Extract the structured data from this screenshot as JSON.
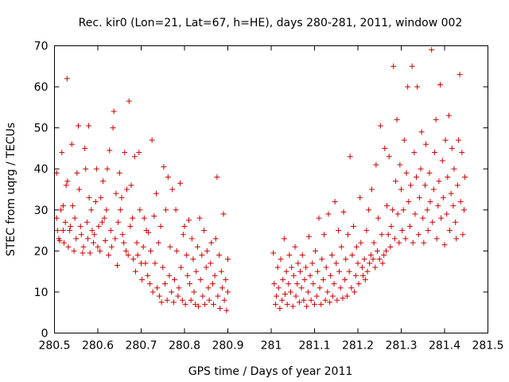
{
  "chart_data": {
    "type": "scatter",
    "title": "Rec. kir0 (Lon=21, Lat=67, h=HE), days 280-281, 2011, window 002",
    "xlabel": "GPS time / Days of year 2011",
    "ylabel": "STEC from uqrg / TECUs",
    "xlim": [
      280.5,
      281.5
    ],
    "ylim": [
      0,
      70
    ],
    "xticks": [
      "280.5",
      "280.6",
      "280.7",
      "280.8",
      "280.9",
      "281",
      "281.1",
      "281.2",
      "281.3",
      "281.4",
      "281.5"
    ],
    "yticks": [
      "0",
      "10",
      "20",
      "30",
      "40",
      "50",
      "60",
      "70"
    ],
    "grid": false,
    "marker": "+",
    "color": "#cc0000",
    "points": [
      [
        280.505,
        39
      ],
      [
        280.505,
        28
      ],
      [
        280.507,
        25
      ],
      [
        280.51,
        23
      ],
      [
        280.512,
        22.5
      ],
      [
        280.515,
        30
      ],
      [
        280.517,
        44
      ],
      [
        280.52,
        31
      ],
      [
        280.52,
        25
      ],
      [
        280.522,
        22
      ],
      [
        280.525,
        27
      ],
      [
        280.527,
        36
      ],
      [
        280.529,
        62
      ],
      [
        280.53,
        37
      ],
      [
        280.532,
        21
      ],
      [
        280.535,
        25
      ],
      [
        280.537,
        26
      ],
      [
        280.54,
        46
      ],
      [
        280.542,
        31
      ],
      [
        280.545,
        20
      ],
      [
        280.547,
        28
      ],
      [
        280.55,
        23
      ],
      [
        280.552,
        39
      ],
      [
        280.555,
        50.5
      ],
      [
        280.557,
        35
      ],
      [
        280.56,
        26
      ],
      [
        280.562,
        24
      ],
      [
        280.565,
        19.5
      ],
      [
        280.567,
        21
      ],
      [
        280.57,
        45
      ],
      [
        280.572,
        40
      ],
      [
        280.575,
        27
      ],
      [
        280.577,
        23
      ],
      [
        280.579,
        50.5
      ],
      [
        280.58,
        33
      ],
      [
        280.582,
        19.5
      ],
      [
        280.585,
        30
      ],
      [
        280.587,
        25
      ],
      [
        280.59,
        22
      ],
      [
        280.592,
        24
      ],
      [
        280.595,
        32
      ],
      [
        280.597,
        40
      ],
      [
        280.6,
        21
      ],
      [
        280.602,
        26
      ],
      [
        280.605,
        20
      ],
      [
        280.607,
        33
      ],
      [
        280.61,
        27
      ],
      [
        280.612,
        37
      ],
      [
        280.615,
        28
      ],
      [
        280.617,
        22.5
      ],
      [
        280.62,
        30
      ],
      [
        280.622,
        40
      ],
      [
        280.625,
        19
      ],
      [
        280.627,
        44.5
      ],
      [
        280.63,
        25
      ],
      [
        280.632,
        21
      ],
      [
        280.635,
        50
      ],
      [
        280.637,
        54
      ],
      [
        280.64,
        23
      ],
      [
        280.642,
        34
      ],
      [
        280.645,
        16.5
      ],
      [
        280.647,
        27
      ],
      [
        280.65,
        39
      ],
      [
        280.652,
        30
      ],
      [
        280.655,
        33
      ],
      [
        280.657,
        24
      ],
      [
        280.66,
        22
      ],
      [
        280.662,
        44
      ],
      [
        280.665,
        20
      ],
      [
        280.667,
        35
      ],
      [
        280.67,
        19
      ],
      [
        280.672,
        56.5
      ],
      [
        280.675,
        26
      ],
      [
        280.677,
        36
      ],
      [
        280.68,
        28
      ],
      [
        280.682,
        18
      ],
      [
        280.685,
        43
      ],
      [
        280.687,
        15
      ],
      [
        280.69,
        22
      ],
      [
        280.692,
        19
      ],
      [
        280.695,
        44
      ],
      [
        280.697,
        30
      ],
      [
        280.7,
        17
      ],
      [
        280.702,
        13
      ],
      [
        280.705,
        21
      ],
      [
        280.707,
        28
      ],
      [
        280.71,
        17
      ],
      [
        280.712,
        25
      ],
      [
        280.715,
        14
      ],
      [
        280.717,
        24.5
      ],
      [
        280.72,
        12
      ],
      [
        280.722,
        20
      ],
      [
        280.725,
        47
      ],
      [
        280.727,
        10
      ],
      [
        280.73,
        28.5
      ],
      [
        280.732,
        17
      ],
      [
        280.735,
        34
      ],
      [
        280.737,
        11
      ],
      [
        280.74,
        22
      ],
      [
        280.742,
        9
      ],
      [
        280.745,
        26
      ],
      [
        280.747,
        7.5
      ],
      [
        280.75,
        16
      ],
      [
        280.752,
        40.5
      ],
      [
        280.755,
        12
      ],
      [
        280.757,
        30
      ],
      [
        280.76,
        8
      ],
      [
        280.762,
        38
      ],
      [
        280.765,
        14
      ],
      [
        280.767,
        21
      ],
      [
        280.77,
        10
      ],
      [
        280.772,
        35
      ],
      [
        280.775,
        7.5
      ],
      [
        280.777,
        13
      ],
      [
        280.78,
        30
      ],
      [
        280.782,
        20
      ],
      [
        280.785,
        9
      ],
      [
        280.787,
        11
      ],
      [
        280.79,
        36.5
      ],
      [
        280.792,
        16
      ],
      [
        280.795,
        8
      ],
      [
        280.797,
        24
      ],
      [
        280.8,
        26
      ],
      [
        280.802,
        7
      ],
      [
        280.805,
        19
      ],
      [
        280.807,
        14
      ],
      [
        280.81,
        27.5
      ],
      [
        280.812,
        12
      ],
      [
        280.815,
        8
      ],
      [
        280.817,
        23
      ],
      [
        280.82,
        18
      ],
      [
        280.822,
        10
      ],
      [
        280.825,
        7
      ],
      [
        280.827,
        15
      ],
      [
        280.83,
        21
      ],
      [
        280.832,
        6.5
      ],
      [
        280.835,
        28
      ],
      [
        280.837,
        13
      ],
      [
        280.84,
        19
      ],
      [
        280.842,
        9
      ],
      [
        280.845,
        25
      ],
      [
        280.847,
        7
      ],
      [
        280.85,
        16
      ],
      [
        280.852,
        20
      ],
      [
        280.855,
        11
      ],
      [
        280.857,
        8
      ],
      [
        280.86,
        17
      ],
      [
        280.862,
        22
      ],
      [
        280.865,
        12
      ],
      [
        280.867,
        7
      ],
      [
        280.87,
        14
      ],
      [
        280.872,
        23
      ],
      [
        280.875,
        38
      ],
      [
        280.877,
        9
      ],
      [
        280.88,
        19
      ],
      [
        280.882,
        6
      ],
      [
        280.885,
        15
      ],
      [
        280.887,
        11
      ],
      [
        280.89,
        29
      ],
      [
        280.892,
        8
      ],
      [
        280.895,
        13
      ],
      [
        280.897,
        5.5
      ],
      [
        280.9,
        18
      ],
      [
        280.9,
        10
      ],
      [
        281.005,
        19.5
      ],
      [
        281.007,
        12
      ],
      [
        281.01,
        7
      ],
      [
        281.012,
        9
      ],
      [
        281.015,
        16
      ],
      [
        281.017,
        11
      ],
      [
        281.02,
        6
      ],
      [
        281.022,
        18
      ],
      [
        281.025,
        8
      ],
      [
        281.027,
        13
      ],
      [
        281.03,
        23
      ],
      [
        281.032,
        9.5
      ],
      [
        281.035,
        15
      ],
      [
        281.037,
        7
      ],
      [
        281.04,
        12
      ],
      [
        281.042,
        19
      ],
      [
        281.045,
        10
      ],
      [
        281.047,
        16
      ],
      [
        281.05,
        6.5
      ],
      [
        281.052,
        14
      ],
      [
        281.055,
        21
      ],
      [
        281.057,
        9
      ],
      [
        281.06,
        12
      ],
      [
        281.062,
        17
      ],
      [
        281.065,
        7.5
      ],
      [
        281.067,
        15
      ],
      [
        281.07,
        11
      ],
      [
        281.072,
        19
      ],
      [
        281.075,
        8
      ],
      [
        281.077,
        13
      ],
      [
        281.08,
        16
      ],
      [
        281.082,
        6.5
      ],
      [
        281.085,
        10
      ],
      [
        281.087,
        23.5
      ],
      [
        281.09,
        14
      ],
      [
        281.092,
        8
      ],
      [
        281.095,
        17
      ],
      [
        281.097,
        12
      ],
      [
        281.1,
        7
      ],
      [
        281.102,
        20
      ],
      [
        281.105,
        9
      ],
      [
        281.107,
        15
      ],
      [
        281.11,
        28
      ],
      [
        281.112,
        11
      ],
      [
        281.115,
        7
      ],
      [
        281.117,
        18
      ],
      [
        281.12,
        13
      ],
      [
        281.122,
        24
      ],
      [
        281.125,
        8
      ],
      [
        281.127,
        16
      ],
      [
        281.13,
        10
      ],
      [
        281.132,
        29
      ],
      [
        281.135,
        7.5
      ],
      [
        281.137,
        14
      ],
      [
        281.14,
        19
      ],
      [
        281.142,
        9
      ],
      [
        281.145,
        12
      ],
      [
        281.147,
        32
      ],
      [
        281.15,
        17
      ],
      [
        281.152,
        8
      ],
      [
        281.155,
        25
      ],
      [
        281.157,
        15
      ],
      [
        281.16,
        11
      ],
      [
        281.162,
        21
      ],
      [
        281.165,
        8.5
      ],
      [
        281.167,
        29.5
      ],
      [
        281.17,
        13
      ],
      [
        281.172,
        18
      ],
      [
        281.175,
        9
      ],
      [
        281.177,
        24
      ],
      [
        281.18,
        15
      ],
      [
        281.182,
        43
      ],
      [
        281.185,
        11
      ],
      [
        281.187,
        19
      ],
      [
        281.19,
        26
      ],
      [
        281.192,
        10
      ],
      [
        281.195,
        14
      ],
      [
        281.197,
        21
      ],
      [
        281.2,
        17
      ],
      [
        281.202,
        12
      ],
      [
        281.205,
        33
      ],
      [
        281.207,
        22
      ],
      [
        281.21,
        16
      ],
      [
        281.212,
        14
      ],
      [
        281.215,
        18
      ],
      [
        281.217,
        13
      ],
      [
        281.22,
        25
      ],
      [
        281.222,
        15
      ],
      [
        281.225,
        30
      ],
      [
        281.227,
        17
      ],
      [
        281.23,
        19
      ],
      [
        281.232,
        35
      ],
      [
        281.235,
        18
      ],
      [
        281.237,
        22
      ],
      [
        281.24,
        16
      ],
      [
        281.242,
        41
      ],
      [
        281.245,
        20
      ],
      [
        281.247,
        28
      ],
      [
        281.25,
        18
      ],
      [
        281.252,
        50.5
      ],
      [
        281.255,
        24
      ],
      [
        281.257,
        17
      ],
      [
        281.26,
        19
      ],
      [
        281.262,
        45
      ],
      [
        281.265,
        20
      ],
      [
        281.267,
        31
      ],
      [
        281.27,
        24
      ],
      [
        281.272,
        43
      ],
      [
        281.275,
        21
      ],
      [
        281.277,
        26
      ],
      [
        281.28,
        30
      ],
      [
        281.282,
        65
      ],
      [
        281.285,
        23
      ],
      [
        281.287,
        37
      ],
      [
        281.29,
        52
      ],
      [
        281.292,
        29
      ],
      [
        281.295,
        22
      ],
      [
        281.297,
        41
      ],
      [
        281.3,
        35
      ],
      [
        281.302,
        25
      ],
      [
        281.305,
        30
      ],
      [
        281.307,
        47
      ],
      [
        281.31,
        23
      ],
      [
        281.312,
        39
      ],
      [
        281.315,
        60
      ],
      [
        281.317,
        32
      ],
      [
        281.32,
        26
      ],
      [
        281.322,
        36
      ],
      [
        281.325,
        65
      ],
      [
        281.327,
        22
      ],
      [
        281.33,
        44
      ],
      [
        281.332,
        29
      ],
      [
        281.335,
        38
      ],
      [
        281.337,
        60
      ],
      [
        281.34,
        24
      ],
      [
        281.342,
        33
      ],
      [
        281.345,
        40
      ],
      [
        281.347,
        49
      ],
      [
        281.35,
        28
      ],
      [
        281.352,
        22
      ],
      [
        281.355,
        36
      ],
      [
        281.357,
        46
      ],
      [
        281.36,
        30
      ],
      [
        281.362,
        25
      ],
      [
        281.365,
        39
      ],
      [
        281.367,
        32
      ],
      [
        281.37,
        69
      ],
      [
        281.372,
        27
      ],
      [
        281.375,
        35
      ],
      [
        281.377,
        44
      ],
      [
        281.38,
        52
      ],
      [
        281.382,
        23
      ],
      [
        281.385,
        31
      ],
      [
        281.387,
        37
      ],
      [
        281.39,
        60.5
      ],
      [
        281.392,
        28
      ],
      [
        281.395,
        42
      ],
      [
        281.397,
        33
      ],
      [
        281.4,
        21.5
      ],
      [
        281.402,
        47
      ],
      [
        281.405,
        29
      ],
      [
        281.407,
        38
      ],
      [
        281.41,
        53
      ],
      [
        281.412,
        25
      ],
      [
        281.415,
        34
      ],
      [
        281.417,
        45
      ],
      [
        281.42,
        31
      ],
      [
        281.422,
        40
      ],
      [
        281.425,
        27
      ],
      [
        281.427,
        23
      ],
      [
        281.43,
        36
      ],
      [
        281.432,
        47
      ],
      [
        281.435,
        63
      ],
      [
        281.437,
        32
      ],
      [
        281.44,
        44
      ],
      [
        281.442,
        24
      ],
      [
        281.445,
        30
      ],
      [
        281.447,
        38
      ]
    ]
  }
}
